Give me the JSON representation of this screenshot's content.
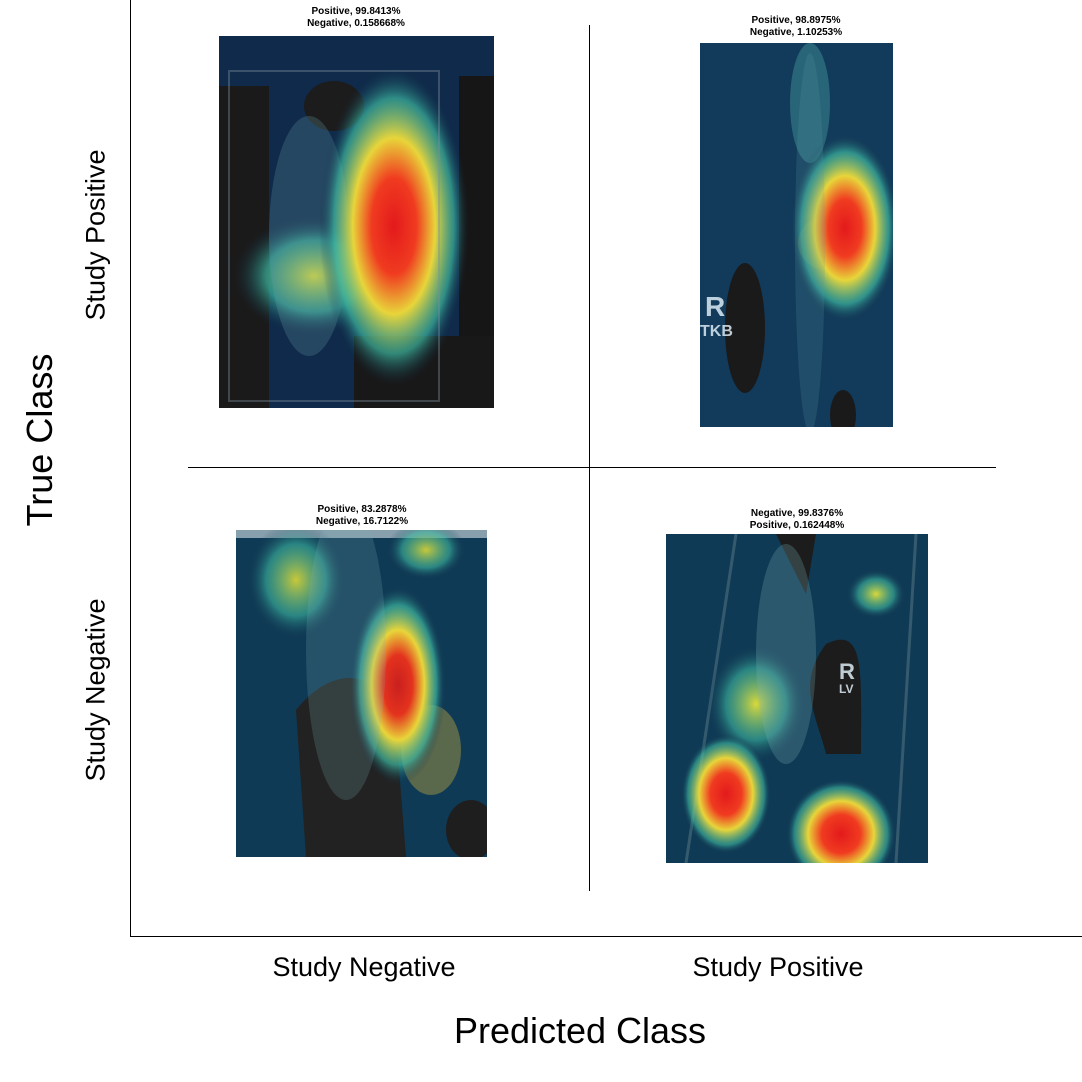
{
  "x_axis_title": "Predicted Class",
  "y_axis_title": "True Class",
  "columns": [
    "Study Negative",
    "Study Positive"
  ],
  "rows": [
    "Study Positive",
    "Study Negative"
  ],
  "cells": {
    "tp_row_neg_col": {
      "line1": "Positive, 99.8413%",
      "line2": "Negative, 0.158668%"
    },
    "tp_row_pos_col": {
      "line1": "Positive, 98.8975%",
      "line2": "Negative, 1.10253%",
      "marker_main": "R",
      "marker_sub": "TKB"
    },
    "tn_row_neg_col": {
      "line1": "Positive, 83.2878%",
      "line2": "Negative, 16.7122%"
    },
    "tn_row_pos_col": {
      "line1": "Negative, 99.8376%",
      "line2": "Positive, 0.162448%",
      "marker_main": "R",
      "marker_sub": "LV"
    }
  },
  "colors": {
    "background": "#ffffff",
    "heat_low": "#0f2a4a",
    "heat_mid": "#2aa39a",
    "heat_high": "#e31a1c"
  }
}
